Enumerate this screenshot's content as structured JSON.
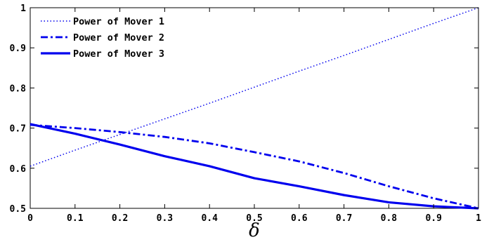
{
  "chart_data": {
    "type": "line",
    "xlabel": "δ",
    "ylabel": "",
    "xlim": [
      0,
      1
    ],
    "ylim": [
      0.5,
      1
    ],
    "x_ticks": [
      "0",
      "0.1",
      "0.2",
      "0.3",
      "0.4",
      "0.5",
      "0.6",
      "0.7",
      "0.8",
      "0.9",
      "1"
    ],
    "y_ticks": [
      "0.5",
      "0.6",
      "0.7",
      "0.8",
      "0.9",
      "1"
    ],
    "grid": false,
    "legend_position": "top-left",
    "x": [
      0,
      0.1,
      0.2,
      0.3,
      0.4,
      0.5,
      0.6,
      0.7,
      0.8,
      0.9,
      1
    ],
    "series": [
      {
        "name": "Power of Mover 1",
        "style": "dotted",
        "color": "#0000ee",
        "values": [
          0.605,
          0.645,
          0.684,
          0.723,
          0.762,
          0.802,
          0.842,
          0.881,
          0.921,
          0.961,
          1.0
        ]
      },
      {
        "name": "Power of Mover 2",
        "style": "dash-dot",
        "color": "#0000ee",
        "values": [
          0.708,
          0.7,
          0.69,
          0.678,
          0.662,
          0.64,
          0.617,
          0.588,
          0.555,
          0.525,
          0.5
        ]
      },
      {
        "name": "Power of Mover 3",
        "style": "solid",
        "color": "#0000ee",
        "values": [
          0.71,
          0.686,
          0.659,
          0.63,
          0.605,
          0.575,
          0.555,
          0.533,
          0.515,
          0.505,
          0.5
        ]
      }
    ]
  }
}
